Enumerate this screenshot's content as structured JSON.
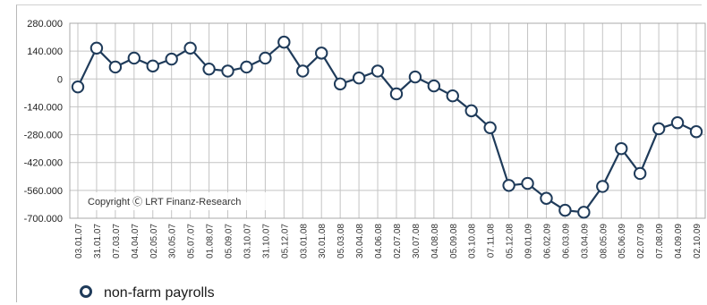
{
  "chart_data": {
    "type": "line",
    "copyright": "Copyright Ⓒ LRT Finanz-Research",
    "legend": "non-farm payrolls",
    "legend_position": "bottom-left",
    "grid": true,
    "ylim": [
      -700000,
      280000
    ],
    "yticks": [
      280000,
      140000,
      0,
      -140000,
      -280000,
      -420000,
      -560000,
      -700000
    ],
    "ytick_labels": [
      "280.000",
      "140.000",
      "0",
      "-140.000",
      "-280.000",
      "-420.000",
      "-560.000",
      "-700.000"
    ],
    "x": [
      "03.01.07",
      "31.01.07",
      "07.03.07",
      "04.04.07",
      "02.05.07",
      "30.05.07",
      "05.07.07",
      "01.08.07",
      "05.09.07",
      "03.10.07",
      "31.10.07",
      "05.12.07",
      "03.01.08",
      "30.01.08",
      "05.03.08",
      "30.04.08",
      "04.06.08",
      "02.07.08",
      "30.07.08",
      "04.08.08",
      "05.09.08",
      "03.10.08",
      "07.11.08",
      "05.12.08",
      "09.01.09",
      "06.02.09",
      "06.03.09",
      "03.04.09",
      "08.05.09",
      "05.06.09",
      "02.07.09",
      "07.08.09",
      "04.09.09",
      "02.10.09"
    ],
    "series": [
      {
        "name": "non-farm payrolls",
        "color": "#1f3b5a",
        "values": [
          -40000,
          155000,
          60000,
          105000,
          65000,
          100000,
          155000,
          50000,
          40000,
          60000,
          105000,
          185000,
          40000,
          130000,
          -25000,
          5000,
          40000,
          -75000,
          10000,
          -35000,
          -85000,
          -160000,
          -245000,
          -535000,
          -525000,
          -600000,
          -660000,
          -670000,
          -540000,
          -350000,
          -475000,
          -250000,
          -220000,
          -265000
        ]
      }
    ]
  }
}
